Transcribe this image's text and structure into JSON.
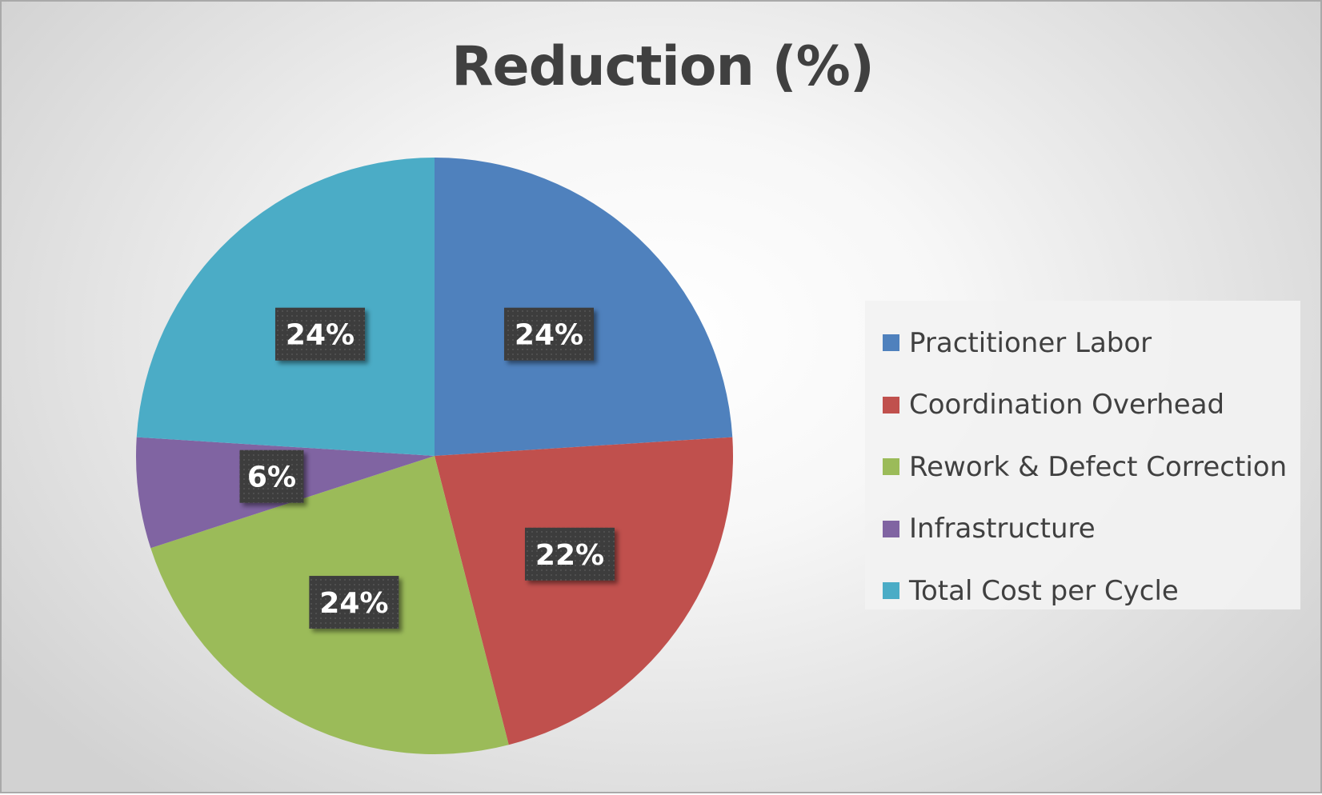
{
  "chart_data": {
    "type": "pie",
    "title": "Reduction (%)",
    "categories": [
      "Practitioner Labor",
      "Coordination Overhead",
      "Rework & Defect Correction",
      "Infrastructure",
      "Total Cost per Cycle"
    ],
    "values": [
      24,
      22,
      24,
      6,
      24
    ],
    "data_labels": [
      "24%",
      "22%",
      "24%",
      "6%",
      "24%"
    ],
    "colors": [
      "#4f81bd",
      "#c0504d",
      "#9bbb59",
      "#8064a2",
      "#4bacc6"
    ],
    "start_angle_deg": 0,
    "direction": "clockwise",
    "legend": {
      "position": "right"
    }
  }
}
